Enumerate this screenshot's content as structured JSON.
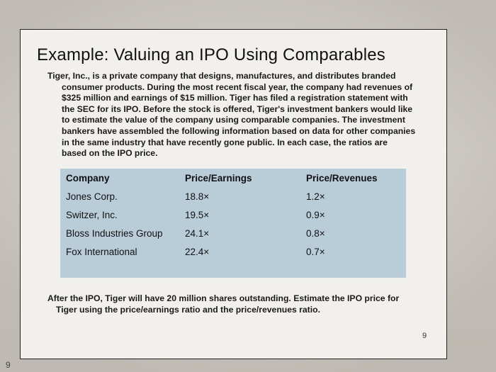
{
  "slide": {
    "title": "Example: Valuing an IPO Using Comparables",
    "intro_lines": [
      "Tiger, Inc., is a private company that designs, manufactures, and distributes branded",
      "consumer products. During the most recent fiscal year, the company had revenues of",
      "$325 million and earnings of $15 million. Tiger has filed a registration statement with",
      "the SEC for its IPO. Before the stock is offered, Tiger's investment bankers would like",
      "to estimate the value of the company using comparable companies. The investment",
      "bankers have assembled the following information based on data for other companies",
      "in the same industry that have recently gone public. In each case, the ratios are",
      "based on the IPO price."
    ],
    "table": {
      "headers": [
        "Company",
        "Price/Earnings",
        "Price/Revenues"
      ],
      "rows": [
        [
          "Jones Corp.",
          "18.8×",
          "1.2×"
        ],
        [
          "Switzer, Inc.",
          "19.5×",
          "0.9×"
        ],
        [
          "Bloss Industries Group",
          "24.1×",
          "0.8×"
        ],
        [
          "Fox International",
          "22.4×",
          "0.7×"
        ]
      ]
    },
    "footer_lines": [
      "After the IPO, Tiger will have 20 million shares outstanding. Estimate the IPO price for",
      "Tiger using the price/earnings ratio and the price/revenues ratio."
    ],
    "slide_number": "9"
  },
  "book_page_number": "9",
  "colors": {
    "table_bg": "#b9cdd8",
    "slide_bg": "#f2f0ec",
    "border": "#222222"
  }
}
